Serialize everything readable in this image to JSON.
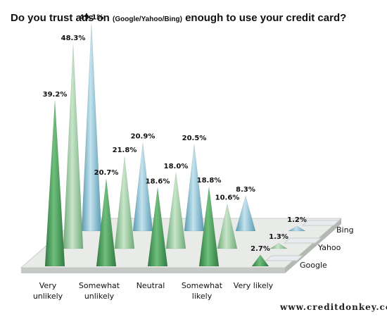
{
  "chart_data": {
    "type": "bar",
    "style": "3D cone chart",
    "title": {
      "prefix": "Do you trust ads on ",
      "middle": "(Google/Yahoo/Bing)",
      "suffix": " enough to use your credit card?"
    },
    "categories": [
      [
        "Very",
        "unlikely"
      ],
      [
        "Somewhat",
        "unlikely"
      ],
      [
        "Neutral"
      ],
      [
        "Somewhat",
        "likely"
      ],
      [
        "Very likely"
      ]
    ],
    "series": [
      {
        "name": "Google",
        "values": [
          39.2,
          20.7,
          18.6,
          18.8,
          2.7
        ],
        "labels": [
          "39.2%",
          "20.7%",
          "18.6%",
          "18.8%",
          "2.7%"
        ],
        "color": "#5aa86b"
      },
      {
        "name": "Yahoo",
        "values": [
          48.3,
          21.8,
          18.0,
          10.6,
          1.3
        ],
        "labels": [
          "48.3%",
          "21.8%",
          "18.0%",
          "10.6%",
          "1.3%"
        ],
        "color": "#9dcca3"
      },
      {
        "name": "Bing",
        "values": [
          49.1,
          20.9,
          20.5,
          8.3,
          1.2
        ],
        "labels": [
          "49.1%",
          "20.9%",
          "20.5%",
          "8.3%",
          "1.2%"
        ],
        "color": "#8ec3d6"
      }
    ],
    "ylim": [
      0,
      50
    ],
    "legend_position": "right",
    "grid": false
  },
  "credit": "www.creditdonkey.com"
}
